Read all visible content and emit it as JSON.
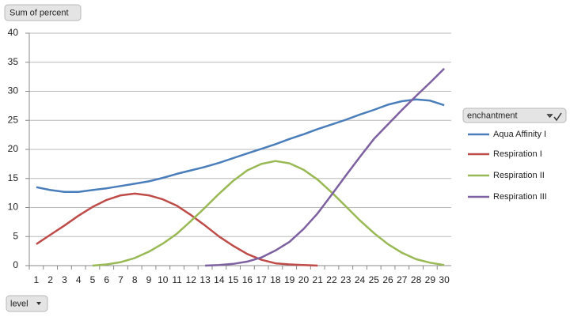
{
  "chart_data": {
    "type": "line",
    "y_field_button": "Sum of percent",
    "x_field_button": "level",
    "legend_title": "enchantment",
    "categories": [
      1,
      2,
      3,
      4,
      5,
      6,
      7,
      8,
      9,
      10,
      11,
      12,
      13,
      14,
      15,
      16,
      17,
      18,
      19,
      20,
      21,
      22,
      23,
      24,
      25,
      26,
      27,
      28,
      29,
      30
    ],
    "series": [
      {
        "name": "Aqua Affinity I",
        "color": "#4a7ebb",
        "values": [
          13.5,
          13.0,
          12.7,
          12.7,
          13.0,
          13.3,
          13.7,
          14.1,
          14.5,
          15.1,
          15.8,
          16.4,
          17.0,
          17.7,
          18.5,
          19.3,
          20.1,
          20.9,
          21.8,
          22.6,
          23.5,
          24.3,
          25.1,
          26.0,
          26.8,
          27.7,
          28.3,
          28.6,
          28.4,
          27.6
        ]
      },
      {
        "name": "Respiration I",
        "color": "#be4b48",
        "values": [
          3.7,
          5.3,
          6.9,
          8.6,
          10.1,
          11.3,
          12.1,
          12.4,
          12.1,
          11.4,
          10.3,
          8.7,
          6.9,
          5.0,
          3.4,
          2.0,
          1.0,
          0.4,
          0.2,
          0.1,
          0,
          null,
          null,
          null,
          null,
          null,
          null,
          null,
          null,
          null
        ]
      },
      {
        "name": "Respiration II",
        "color": "#98b954",
        "values": [
          null,
          null,
          null,
          null,
          0,
          0.2,
          0.6,
          1.3,
          2.4,
          3.8,
          5.5,
          7.7,
          10.0,
          12.4,
          14.6,
          16.4,
          17.5,
          18.0,
          17.6,
          16.5,
          14.8,
          12.6,
          10.2,
          7.8,
          5.6,
          3.7,
          2.2,
          1.1,
          0.5,
          0.1
        ]
      },
      {
        "name": "Respiration III",
        "color": "#7d60a0",
        "values": [
          null,
          null,
          null,
          null,
          null,
          null,
          null,
          null,
          null,
          null,
          null,
          null,
          0,
          0.1,
          0.3,
          0.7,
          1.4,
          2.6,
          4.1,
          6.3,
          9.0,
          12.2,
          15.5,
          18.7,
          21.8,
          24.3,
          26.8,
          29.2,
          31.5,
          33.9
        ]
      }
    ],
    "ylim": [
      0,
      40
    ],
    "yticks": [
      0,
      5,
      10,
      15,
      20,
      25,
      30,
      35,
      40
    ],
    "grid": true,
    "legend": "right"
  }
}
